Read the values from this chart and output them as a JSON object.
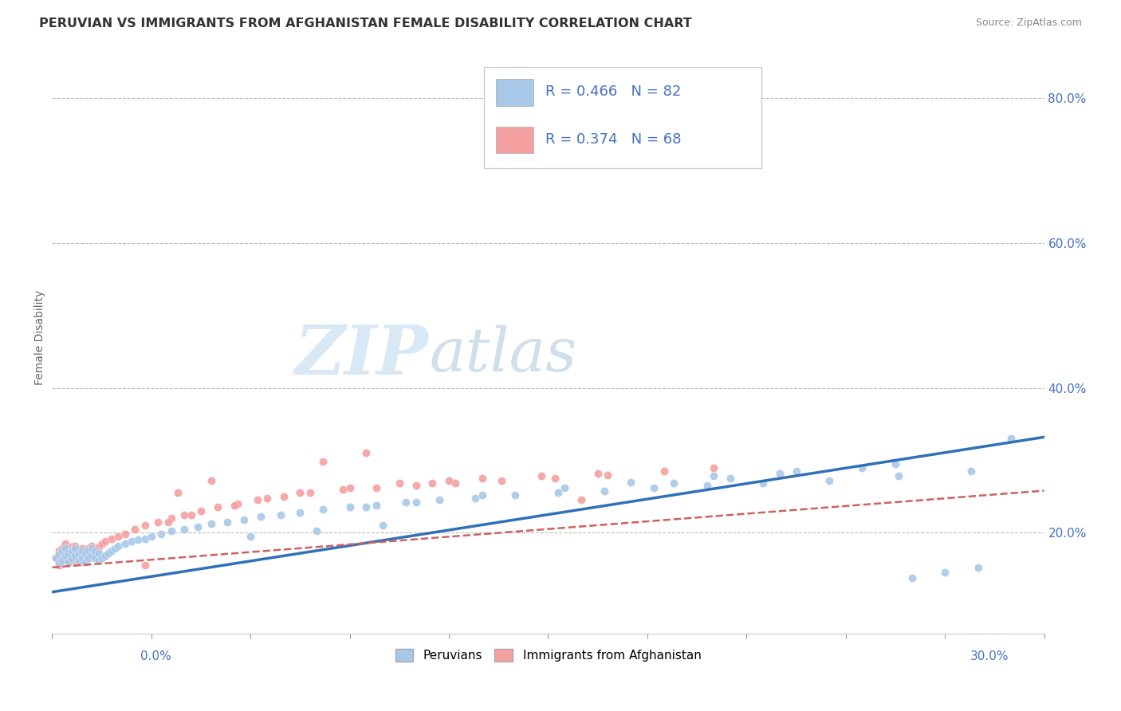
{
  "title": "PERUVIAN VS IMMIGRANTS FROM AFGHANISTAN FEMALE DISABILITY CORRELATION CHART",
  "source": "Source: ZipAtlas.com",
  "ylabel": "Female Disability",
  "r_blue": 0.466,
  "n_blue": 82,
  "r_pink": 0.374,
  "n_pink": 68,
  "blue_color": "#a8c8e8",
  "pink_color": "#f4a0a0",
  "blue_line_color": "#3070b8",
  "pink_line_color": "#d06060",
  "watermark_zip": "ZIP",
  "watermark_atlas": "atlas",
  "xlim": [
    0.0,
    0.3
  ],
  "ylim": [
    0.06,
    0.88
  ],
  "ytick_values": [
    0.2,
    0.4,
    0.6,
    0.8
  ],
  "blue_scatter_x": [
    0.001,
    0.002,
    0.002,
    0.003,
    0.003,
    0.004,
    0.004,
    0.005,
    0.005,
    0.006,
    0.006,
    0.007,
    0.007,
    0.008,
    0.008,
    0.009,
    0.009,
    0.01,
    0.01,
    0.011,
    0.011,
    0.012,
    0.012,
    0.013,
    0.013,
    0.014,
    0.014,
    0.015,
    0.016,
    0.017,
    0.018,
    0.019,
    0.02,
    0.022,
    0.024,
    0.026,
    0.028,
    0.03,
    0.033,
    0.036,
    0.04,
    0.044,
    0.048,
    0.053,
    0.058,
    0.063,
    0.069,
    0.075,
    0.082,
    0.09,
    0.098,
    0.107,
    0.117,
    0.128,
    0.14,
    0.153,
    0.167,
    0.182,
    0.198,
    0.215,
    0.235,
    0.256,
    0.278,
    0.188,
    0.205,
    0.22,
    0.245,
    0.095,
    0.11,
    0.13,
    0.155,
    0.175,
    0.2,
    0.225,
    0.255,
    0.06,
    0.08,
    0.1,
    0.29,
    0.28,
    0.27,
    0.26
  ],
  "blue_scatter_y": [
    0.165,
    0.158,
    0.17,
    0.162,
    0.175,
    0.168,
    0.178,
    0.16,
    0.172,
    0.165,
    0.175,
    0.168,
    0.178,
    0.162,
    0.172,
    0.165,
    0.175,
    0.16,
    0.17,
    0.165,
    0.175,
    0.168,
    0.178,
    0.165,
    0.175,
    0.162,
    0.172,
    0.165,
    0.168,
    0.172,
    0.175,
    0.178,
    0.182,
    0.185,
    0.188,
    0.19,
    0.192,
    0.195,
    0.198,
    0.202,
    0.205,
    0.208,
    0.212,
    0.215,
    0.218,
    0.222,
    0.225,
    0.228,
    0.232,
    0.235,
    0.238,
    0.242,
    0.245,
    0.248,
    0.252,
    0.255,
    0.258,
    0.262,
    0.265,
    0.268,
    0.272,
    0.278,
    0.285,
    0.268,
    0.275,
    0.282,
    0.29,
    0.235,
    0.242,
    0.252,
    0.262,
    0.27,
    0.278,
    0.285,
    0.295,
    0.195,
    0.202,
    0.21,
    0.33,
    0.152,
    0.145,
    0.138
  ],
  "pink_scatter_x": [
    0.001,
    0.002,
    0.002,
    0.003,
    0.003,
    0.004,
    0.004,
    0.005,
    0.005,
    0.006,
    0.006,
    0.007,
    0.007,
    0.008,
    0.008,
    0.009,
    0.009,
    0.01,
    0.01,
    0.011,
    0.011,
    0.012,
    0.012,
    0.013,
    0.014,
    0.015,
    0.016,
    0.018,
    0.02,
    0.022,
    0.025,
    0.028,
    0.032,
    0.036,
    0.04,
    0.045,
    0.05,
    0.056,
    0.062,
    0.07,
    0.078,
    0.088,
    0.098,
    0.11,
    0.122,
    0.136,
    0.152,
    0.168,
    0.035,
    0.042,
    0.055,
    0.065,
    0.075,
    0.09,
    0.105,
    0.12,
    0.148,
    0.165,
    0.185,
    0.2,
    0.028,
    0.038,
    0.048,
    0.082,
    0.095,
    0.115,
    0.13,
    0.16
  ],
  "pink_scatter_y": [
    0.165,
    0.155,
    0.175,
    0.162,
    0.178,
    0.168,
    0.185,
    0.158,
    0.172,
    0.165,
    0.18,
    0.162,
    0.182,
    0.168,
    0.175,
    0.16,
    0.178,
    0.162,
    0.172,
    0.165,
    0.178,
    0.17,
    0.182,
    0.175,
    0.18,
    0.185,
    0.188,
    0.192,
    0.195,
    0.198,
    0.205,
    0.21,
    0.215,
    0.22,
    0.225,
    0.23,
    0.235,
    0.24,
    0.245,
    0.25,
    0.255,
    0.26,
    0.262,
    0.265,
    0.268,
    0.272,
    0.275,
    0.28,
    0.215,
    0.225,
    0.238,
    0.248,
    0.255,
    0.262,
    0.268,
    0.272,
    0.278,
    0.282,
    0.285,
    0.29,
    0.155,
    0.255,
    0.272,
    0.298,
    0.31,
    0.268,
    0.275,
    0.245
  ],
  "blue_trendline_x": [
    0.0,
    0.3
  ],
  "blue_trendline_y": [
    0.118,
    0.332
  ],
  "pink_trendline_x": [
    0.0,
    0.3
  ],
  "pink_trendline_y": [
    0.152,
    0.258
  ]
}
